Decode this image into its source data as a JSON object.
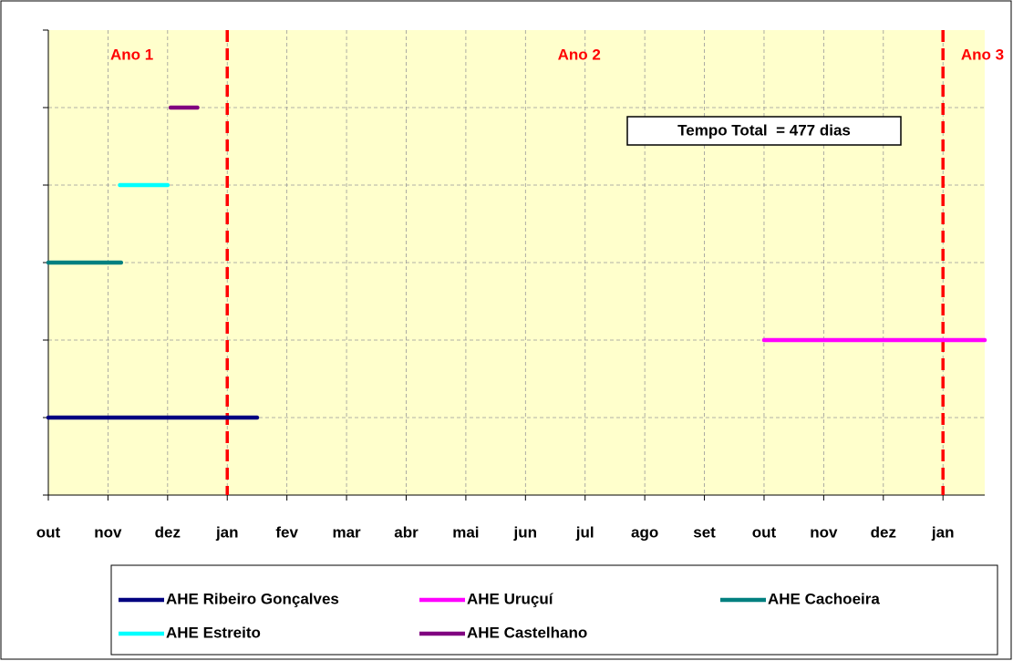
{
  "chart_data": {
    "type": "gantt",
    "xlim": [
      0,
      15.7
    ],
    "xticks": [
      {
        "value": 0,
        "label": "out"
      },
      {
        "value": 1,
        "label": "nov"
      },
      {
        "value": 2,
        "label": "dez"
      },
      {
        "value": 3,
        "label": "jan"
      },
      {
        "value": 4,
        "label": "fev"
      },
      {
        "value": 5,
        "label": "mar"
      },
      {
        "value": 6,
        "label": "abr"
      },
      {
        "value": 7,
        "label": "mai"
      },
      {
        "value": 8,
        "label": "jun"
      },
      {
        "value": 9,
        "label": "jul"
      },
      {
        "value": 10,
        "label": "ago"
      },
      {
        "value": 11,
        "label": "set"
      },
      {
        "value": 12,
        "label": "out"
      },
      {
        "value": 13,
        "label": "nov"
      },
      {
        "value": 14,
        "label": "dez"
      },
      {
        "value": 15,
        "label": "jan"
      }
    ],
    "ylim": [
      0,
      6
    ],
    "yticks": [
      0,
      1,
      2,
      3,
      4,
      5,
      6
    ],
    "grid": true,
    "year_lines": [
      3,
      15
    ],
    "year_line_color": "#ff0000",
    "annotations": [
      "Ano 1",
      "Ano 2",
      "Ano 3"
    ],
    "annotation_x": [
      1.4,
      8.9,
      15.3
    ],
    "total_box": "Tempo Total  = 477 dias",
    "series": [
      {
        "name": "AHE Ribeiro Gonçalves",
        "color": "#000080",
        "x": [
          0,
          3.5
        ],
        "values": [
          1,
          1
        ]
      },
      {
        "name": "AHE Uruçuí",
        "color": "#ff00ff",
        "x": [
          12,
          15.7
        ],
        "values": [
          2,
          2
        ]
      },
      {
        "name": "AHE Cachoeira",
        "color": "#008080",
        "x": [
          0,
          1.22
        ],
        "values": [
          3,
          3
        ]
      },
      {
        "name": "AHE Estreito",
        "color": "#00ffff",
        "x": [
          1.2,
          2.0
        ],
        "values": [
          4,
          4
        ]
      },
      {
        "name": "AHE Castelhano",
        "color": "#800080",
        "x": [
          2.05,
          2.5
        ],
        "values": [
          5,
          5
        ]
      }
    ]
  }
}
